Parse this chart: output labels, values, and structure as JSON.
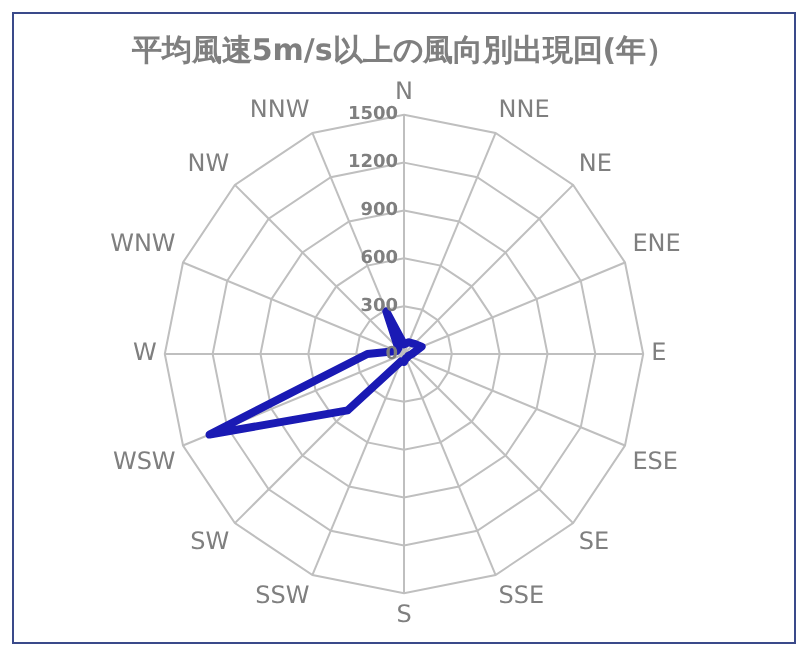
{
  "chart_data": {
    "type": "radar",
    "title": "平均風速5m/s以上の風向別出現回(年）",
    "categories": [
      "N",
      "NNE",
      "NE",
      "ENE",
      "E",
      "ESE",
      "SE",
      "SSE",
      "S",
      "SSW",
      "SW",
      "WSW",
      "W",
      "WNW",
      "NW",
      "NNW"
    ],
    "series": [
      {
        "color": "#1a1ab4",
        "values": [
          60,
          80,
          90,
          120,
          50,
          30,
          30,
          30,
          50,
          50,
          500,
          1320,
          230,
          50,
          50,
          290
        ]
      }
    ],
    "ylim": [
      0,
      1500
    ],
    "yticks": [
      0,
      300,
      600,
      900,
      1200,
      1500
    ],
    "grid": true,
    "legend": false,
    "marker": "none"
  }
}
